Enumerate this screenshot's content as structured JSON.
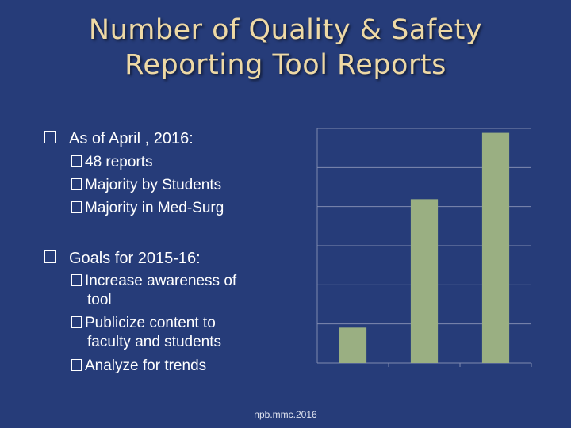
{
  "slide": {
    "title_line1": "Number of Quality & Safety",
    "title_line2": "Reporting Tool Reports",
    "footer": "npb.mmc.2016"
  },
  "bullets": {
    "status_heading": "As of April , 2016:",
    "status_items": [
      "48 reports",
      "Majority by Students",
      "Majority in Med-Surg"
    ],
    "goals_heading": "Goals for 2015-16:",
    "goals_items": [
      "Increase awareness of",
      "tool",
      "Publicize content to",
      "faculty and students",
      "Analyze for trends"
    ]
  },
  "colors": {
    "background": "#263c79",
    "title": "#eed9a5",
    "bar": "#9aaf82",
    "axis": "#7f8ab0"
  },
  "chart_data": {
    "type": "bar",
    "categories": [
      "",
      "",
      ""
    ],
    "values": [
      8,
      37,
      52
    ],
    "ylim": [
      0,
      53
    ],
    "grid": true,
    "xlabel": "",
    "ylabel": ""
  }
}
